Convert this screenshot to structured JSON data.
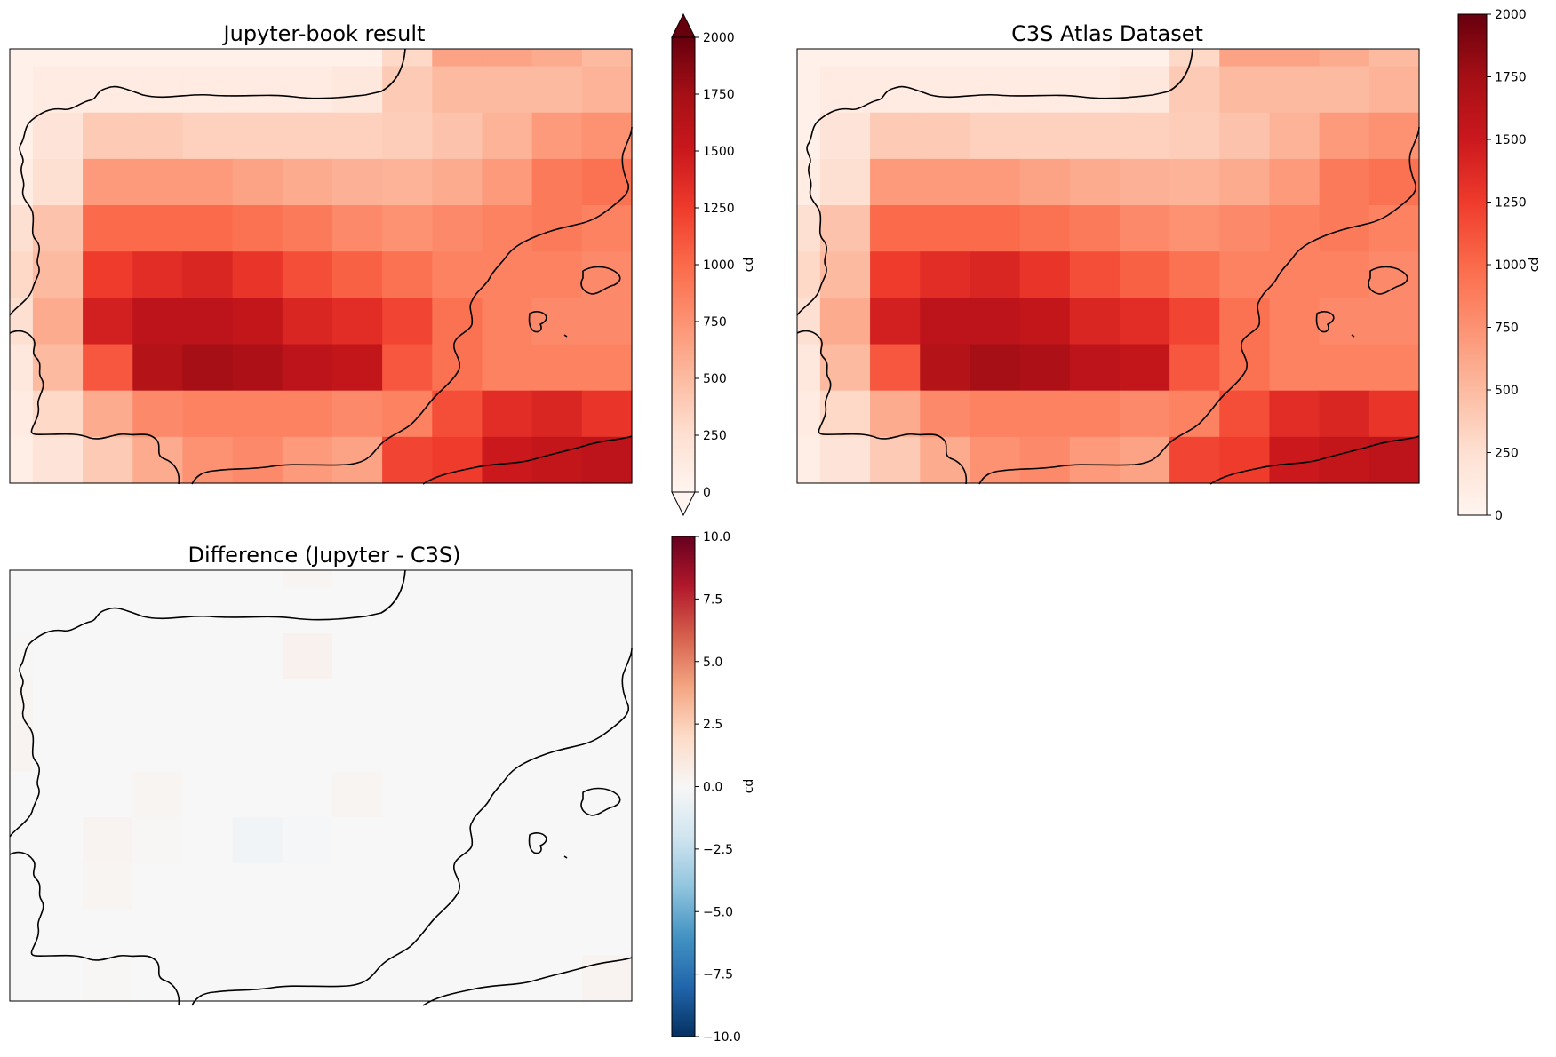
{
  "chart_data": [
    {
      "type": "heatmap",
      "title": "Jupyter-book result",
      "colormap": "Reds",
      "colorbar": {
        "label": "cd",
        "vmin": 0,
        "vmax": 2000,
        "ticks": [
          0,
          250,
          500,
          750,
          1000,
          1250,
          1500,
          1750,
          2000
        ],
        "extend": "both"
      },
      "values": [
        [
          60,
          60,
          60,
          60,
          60,
          60,
          60,
          60,
          300,
          650,
          650,
          600,
          500
        ],
        [
          60,
          120,
          120,
          120,
          120,
          120,
          120,
          160,
          400,
          500,
          500,
          500,
          550
        ],
        [
          60,
          200,
          400,
          400,
          350,
          350,
          350,
          350,
          380,
          450,
          550,
          700,
          750
        ],
        [
          100,
          250,
          700,
          700,
          700,
          650,
          600,
          560,
          550,
          600,
          700,
          900,
          950
        ],
        [
          250,
          450,
          1000,
          1000,
          1000,
          950,
          900,
          800,
          750,
          800,
          850,
          900,
          850
        ],
        [
          300,
          500,
          1250,
          1350,
          1400,
          1300,
          1150,
          1050,
          950,
          850,
          850,
          850,
          800
        ],
        [
          250,
          600,
          1450,
          1600,
          1600,
          1550,
          1400,
          1350,
          1200,
          950,
          850,
          800,
          800
        ],
        [
          150,
          500,
          1100,
          1650,
          1750,
          1700,
          1600,
          1550,
          1100,
          950,
          850,
          850,
          850
        ],
        [
          120,
          300,
          600,
          800,
          850,
          850,
          850,
          800,
          850,
          1150,
          1350,
          1400,
          1300
        ],
        [
          80,
          200,
          400,
          600,
          750,
          800,
          700,
          650,
          1200,
          1250,
          1500,
          1550,
          1600
        ]
      ]
    },
    {
      "type": "heatmap",
      "title": "C3S Atlas Dataset",
      "colormap": "Reds",
      "colorbar": {
        "label": "cd",
        "vmin": 0,
        "vmax": 2000,
        "ticks": [
          0,
          250,
          500,
          750,
          1000,
          1250,
          1500,
          1750,
          2000
        ]
      },
      "values": [
        [
          60,
          60,
          60,
          60,
          60,
          60,
          60,
          60,
          300,
          650,
          650,
          600,
          500
        ],
        [
          60,
          120,
          120,
          120,
          120,
          120,
          120,
          160,
          400,
          500,
          500,
          500,
          550
        ],
        [
          60,
          200,
          400,
          400,
          350,
          350,
          350,
          350,
          380,
          450,
          550,
          700,
          750
        ],
        [
          100,
          250,
          700,
          700,
          700,
          650,
          600,
          560,
          550,
          600,
          700,
          900,
          950
        ],
        [
          250,
          450,
          1000,
          1000,
          1000,
          950,
          900,
          800,
          750,
          800,
          850,
          900,
          850
        ],
        [
          300,
          500,
          1250,
          1350,
          1400,
          1300,
          1150,
          1050,
          950,
          850,
          850,
          850,
          800
        ],
        [
          250,
          600,
          1450,
          1600,
          1600,
          1550,
          1400,
          1350,
          1200,
          950,
          850,
          800,
          800
        ],
        [
          150,
          500,
          1100,
          1650,
          1750,
          1700,
          1600,
          1550,
          1100,
          950,
          850,
          850,
          850
        ],
        [
          120,
          300,
          600,
          800,
          850,
          850,
          850,
          800,
          850,
          1150,
          1350,
          1400,
          1300
        ],
        [
          80,
          200,
          400,
          600,
          750,
          800,
          700,
          650,
          1200,
          1250,
          1500,
          1550,
          1600
        ]
      ]
    },
    {
      "type": "heatmap",
      "title": "Difference (Jupyter - C3S)",
      "colormap": "RdBu_r",
      "colorbar": {
        "label": "cd",
        "vmin": -10,
        "vmax": 10,
        "ticks": [
          "10.0",
          "7.5",
          "5.0",
          "2.5",
          "0.0",
          "−2.5",
          "−5.0",
          "−7.5",
          "−10.0"
        ]
      },
      "values": [
        [
          0,
          0,
          0,
          0,
          0,
          0,
          0.2,
          0,
          0,
          0,
          0,
          0,
          0
        ],
        [
          0,
          0,
          0,
          0,
          0,
          0,
          0,
          0,
          0,
          0,
          0,
          0,
          0
        ],
        [
          0.1,
          0,
          0,
          0,
          0,
          0,
          0.4,
          0,
          0,
          0,
          0,
          0,
          0
        ],
        [
          0.2,
          0,
          0,
          0,
          0,
          0,
          0,
          0,
          0,
          0,
          0,
          0,
          0
        ],
        [
          0.3,
          0,
          0,
          0,
          0,
          0,
          0,
          0,
          0,
          0,
          0,
          0,
          0
        ],
        [
          0,
          0,
          0,
          0.2,
          0,
          0,
          0,
          0.2,
          0,
          0,
          0,
          0,
          0
        ],
        [
          0,
          0,
          0.3,
          0.1,
          0,
          -0.3,
          -0.1,
          0,
          0,
          0,
          0,
          0,
          0
        ],
        [
          0,
          0,
          0.2,
          0,
          0,
          0,
          0,
          0,
          0,
          0,
          0,
          0,
          0
        ],
        [
          0,
          0,
          0,
          0,
          0,
          0,
          0,
          0,
          0,
          0,
          0,
          0,
          0
        ],
        [
          0,
          0,
          0.1,
          0,
          0,
          0,
          0,
          0,
          0,
          0,
          0,
          0,
          0.3
        ]
      ]
    }
  ]
}
